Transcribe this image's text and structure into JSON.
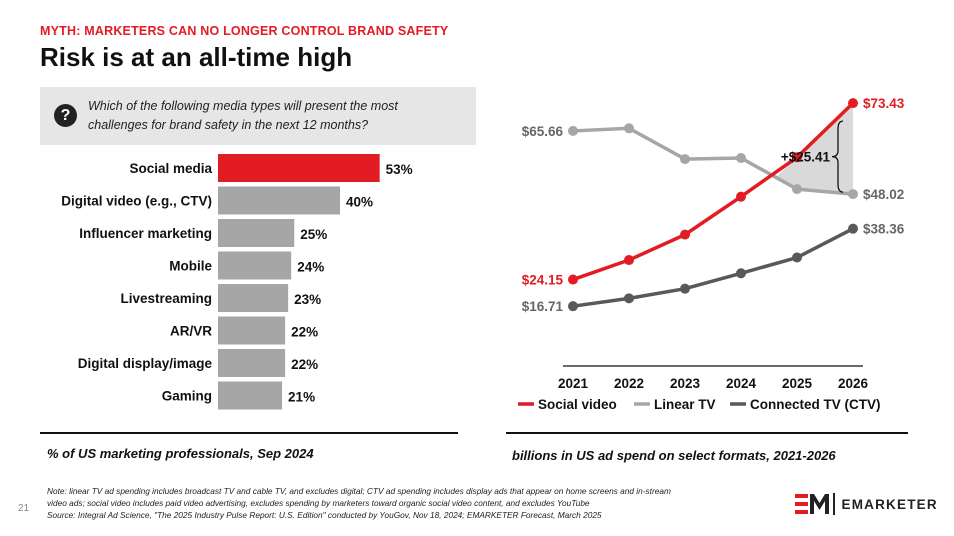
{
  "header": {
    "kicker": "MYTH: MARKETERS CAN NO LONGER CONTROL BRAND SAFETY",
    "title": "Risk is at an all-time high"
  },
  "question": {
    "icon": "question-mark-icon",
    "text": "Which of the following media types will present the most challenges for brand safety in the next 12 months?"
  },
  "footnotes": {
    "left_label": "% of US marketing professionals, Sep 2024",
    "right_label": "billions in US ad spend on select formats, 2021-2026",
    "page_number": "21",
    "note_lines": [
      "Note: linear TV ad spending includes broadcast TV and cable TV, and excludes digital; CTV ad spending includes display ads that appear on home screens and in-stream",
      "video ads; social video includes paid video advertising, excludes spending by marketers toward organic social video content, and excludes YouTube",
      "Source: Integral Ad Science, \"The 2025 Industry Pulse Report: U.S. Edition\" conducted by YouGov, Nov 18, 2024; EMARKETER Forecast, March 2025"
    ]
  },
  "logo": {
    "text": "EMARKETER",
    "icon": "emarketer-logo-icon",
    "color": "#e31b23"
  },
  "colors": {
    "accent": "#e31b23",
    "bar_gray": "#a6a6a6",
    "linear_tv": "#a6a6a6",
    "ctv": "#595959"
  },
  "chart_data": [
    {
      "type": "bar",
      "orientation": "horizontal",
      "categories": [
        "Social media",
        "Digital video (e.g., CTV)",
        "Influencer marketing",
        "Mobile",
        "Livestreaming",
        "AR/VR",
        "Digital display/image",
        "Gaming"
      ],
      "values": [
        53,
        40,
        25,
        24,
        23,
        22,
        22,
        21
      ],
      "value_labels": [
        "53%",
        "40%",
        "25%",
        "24%",
        "23%",
        "22%",
        "22%",
        "21%"
      ],
      "highlight_index": 0,
      "grid": false
    },
    {
      "type": "line",
      "x": [
        "2021",
        "2022",
        "2023",
        "2024",
        "2025",
        "2026"
      ],
      "ylim": [
        0,
        80
      ],
      "grid": false,
      "legend_position": "bottom",
      "series": [
        {
          "name": "Social video",
          "color": "#e31b23",
          "values": [
            24.15,
            29.6,
            36.7,
            47.3,
            58.3,
            73.43
          ],
          "first_label": "$24.15",
          "last_label": "$73.43"
        },
        {
          "name": "Linear TV",
          "color": "#a6a6a6",
          "values": [
            65.66,
            66.4,
            57.8,
            58.1,
            49.4,
            48.02
          ],
          "first_label": "$65.66",
          "last_label": "$48.02"
        },
        {
          "name": "Connected TV (CTV)",
          "color": "#595959",
          "values": [
            16.71,
            18.9,
            21.6,
            25.9,
            30.3,
            38.36
          ],
          "first_label": "$16.71",
          "last_label": "$38.36"
        }
      ],
      "annotation": {
        "label": "+$25.41",
        "x": "2026",
        "from_series": "Linear TV",
        "to_series": "Social video"
      }
    }
  ]
}
